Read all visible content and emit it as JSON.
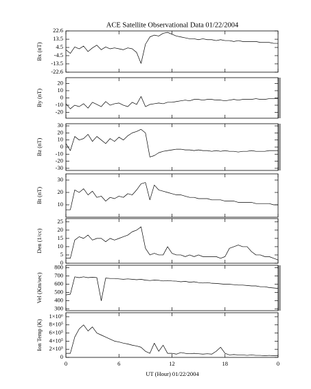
{
  "title": "ACE Satellite Observational Data   01/22/2004",
  "xlabel": "UT (Hour)   01/22/2004",
  "chart_data": [
    {
      "type": "line",
      "ylabel": "Bx (nT)",
      "xlim": [
        0,
        24
      ],
      "xticks": [
        0,
        6,
        12,
        18,
        {
          "value": 24,
          "label": "0"
        }
      ],
      "ylim": [
        -22.6,
        22.6
      ],
      "yticks": [
        22.6,
        13.5,
        4.5,
        -4.5,
        -13.5,
        -22.6
      ],
      "color": "#000000",
      "x": [
        0,
        0.5,
        1,
        1.5,
        2,
        2.5,
        3,
        3.5,
        4,
        4.5,
        5,
        5.5,
        6,
        6.5,
        7,
        7.5,
        8,
        8.5,
        9,
        9.5,
        10,
        10.5,
        11,
        11.5,
        12,
        12.5,
        13,
        13.5,
        14,
        14.5,
        15,
        15.5,
        16,
        16.5,
        17,
        17.5,
        18,
        18.5,
        19,
        19.5,
        20,
        20.5,
        21,
        21.5,
        22,
        22.5,
        23,
        23.5,
        24
      ],
      "values": [
        2,
        -2,
        5,
        3,
        6,
        0,
        4,
        7,
        2,
        5,
        3,
        4,
        3,
        2,
        4,
        3,
        -1,
        -13,
        8,
        16,
        18,
        17,
        20,
        21,
        19,
        17,
        16,
        15,
        14,
        14,
        13,
        14,
        13,
        13,
        12,
        13,
        12,
        12,
        11,
        12,
        11,
        11,
        11,
        11,
        10,
        10,
        10,
        9,
        9
      ]
    },
    {
      "type": "line",
      "ylabel": "By (nT)",
      "xlim": [
        0,
        24
      ],
      "xticks": [
        0,
        6,
        12,
        18,
        {
          "value": 24,
          "label": "0"
        }
      ],
      "ylim": [
        -28,
        28
      ],
      "yticks": [
        20,
        10,
        0,
        -10,
        -20
      ],
      "color": "#000000",
      "x": [
        0,
        0.5,
        1,
        1.5,
        2,
        2.5,
        3,
        3.5,
        4,
        4.5,
        5,
        5.5,
        6,
        6.5,
        7,
        7.5,
        8,
        8.5,
        9,
        9.5,
        10,
        10.5,
        11,
        11.5,
        12,
        12.5,
        13,
        13.5,
        14,
        14.5,
        15,
        15.5,
        16,
        16.5,
        17,
        17.5,
        18,
        18.5,
        19,
        19.5,
        20,
        20.5,
        21,
        21.5,
        22,
        22.5,
        23,
        23.5,
        24
      ],
      "values": [
        -8,
        -15,
        -10,
        -12,
        -8,
        -14,
        -6,
        -9,
        -12,
        -5,
        -10,
        -8,
        -7,
        -10,
        -12,
        -6,
        -9,
        2,
        -12,
        -9,
        -8,
        -7,
        -8,
        -6,
        -6,
        -5,
        -4,
        -3,
        -4,
        -2,
        -2,
        -3,
        -2,
        -2,
        -3,
        -3,
        -4,
        -3,
        -2,
        -3,
        -2,
        -2,
        -2,
        -1,
        -2,
        -2,
        -1,
        -1,
        -1
      ]
    },
    {
      "type": "line",
      "ylabel": "Bz (nT)",
      "xlim": [
        0,
        24
      ],
      "xticks": [
        0,
        6,
        12,
        18,
        {
          "value": 24,
          "label": "0"
        }
      ],
      "ylim": [
        -33,
        33
      ],
      "yticks": [
        30,
        20,
        10,
        0,
        -10,
        -20,
        -30
      ],
      "color": "#000000",
      "x": [
        0,
        0.5,
        1,
        1.5,
        2,
        2.5,
        3,
        3.5,
        4,
        4.5,
        5,
        5.5,
        6,
        6.5,
        7,
        7.5,
        8,
        8.5,
        9,
        9.5,
        10,
        10.5,
        11,
        11.5,
        12,
        12.5,
        13,
        13.5,
        14,
        14.5,
        15,
        15.5,
        16,
        16.5,
        17,
        17.5,
        18,
        18.5,
        19,
        19.5,
        20,
        20.5,
        21,
        21.5,
        22,
        22.5,
        23,
        23.5,
        24
      ],
      "values": [
        5,
        -5,
        15,
        10,
        12,
        18,
        8,
        15,
        10,
        5,
        12,
        8,
        14,
        10,
        16,
        20,
        22,
        25,
        20,
        -14,
        -12,
        -8,
        -6,
        -5,
        -4,
        -3,
        -3,
        -4,
        -4,
        -5,
        -4,
        -5,
        -5,
        -6,
        -5,
        -6,
        -5,
        -6,
        -6,
        -7,
        -6,
        -6,
        -5,
        -6,
        -6,
        -6,
        -5,
        -5,
        -5
      ]
    },
    {
      "type": "line",
      "ylabel": "Bt (nT)",
      "xlim": [
        0,
        24
      ],
      "xticks": [
        0,
        6,
        12,
        18,
        {
          "value": 24,
          "label": "0"
        }
      ],
      "ylim": [
        0,
        35
      ],
      "yticks": [
        30,
        20,
        10
      ],
      "color": "#000000",
      "x": [
        0,
        0.5,
        1,
        1.5,
        2,
        2.5,
        3,
        3.5,
        4,
        4.5,
        5,
        5.5,
        6,
        6.5,
        7,
        7.5,
        8,
        8.5,
        9,
        9.5,
        10,
        10.5,
        11,
        11.5,
        12,
        12.5,
        13,
        13.5,
        14,
        14.5,
        15,
        15.5,
        16,
        16.5,
        17,
        17.5,
        18,
        18.5,
        19,
        19.5,
        20,
        20.5,
        21,
        21.5,
        22,
        22.5,
        23,
        23.5,
        24
      ],
      "values": [
        6,
        6,
        22,
        20,
        23,
        18,
        21,
        16,
        17,
        13,
        16,
        15,
        17,
        16,
        19,
        18,
        22,
        27,
        28,
        14,
        26,
        22,
        21,
        20,
        19,
        18,
        18,
        17,
        16,
        16,
        15,
        15,
        15,
        14,
        14,
        14,
        13,
        13,
        13,
        12,
        12,
        12,
        12,
        11,
        11,
        11,
        11,
        10,
        10
      ]
    },
    {
      "type": "line",
      "ylabel": "Den (1/cc)",
      "xlim": [
        0,
        24
      ],
      "xticks": [
        0,
        6,
        12,
        18,
        {
          "value": 24,
          "label": "0"
        }
      ],
      "ylim": [
        0,
        27
      ],
      "yticks": [
        25,
        20,
        15,
        10,
        5,
        0
      ],
      "color": "#000000",
      "x": [
        0,
        0.5,
        1,
        1.5,
        2,
        2.5,
        3,
        3.5,
        4,
        4.5,
        5,
        5.5,
        6,
        6.5,
        7,
        7.5,
        8,
        8.5,
        9,
        9.5,
        10,
        10.5,
        11,
        11.5,
        12,
        12.5,
        13,
        13.5,
        14,
        14.5,
        15,
        15.5,
        16,
        16.5,
        17,
        17.5,
        18,
        18.5,
        19,
        19.5,
        20,
        20.5,
        21,
        21.5,
        22,
        22.5,
        23,
        23.5,
        24
      ],
      "values": [
        3,
        3,
        14,
        16,
        15,
        17,
        14,
        15,
        15,
        13,
        15,
        14,
        15,
        16,
        17,
        19,
        20,
        22,
        9,
        5,
        6,
        5,
        5,
        10,
        6,
        5,
        5,
        4,
        5,
        4,
        5,
        4,
        4,
        4,
        4,
        3,
        4,
        9,
        10,
        11,
        10,
        10,
        7,
        5,
        5,
        4,
        4,
        3,
        2
      ]
    },
    {
      "type": "line",
      "ylabel": "Vel (Km/sec)",
      "xlim": [
        0,
        24
      ],
      "xticks": [
        0,
        6,
        12,
        18,
        {
          "value": 24,
          "label": "0"
        }
      ],
      "ylim": [
        280,
        830
      ],
      "yticks": [
        800,
        700,
        600,
        500,
        400,
        300
      ],
      "color": "#000000",
      "x": [
        0,
        0.5,
        1,
        1.5,
        2,
        2.5,
        3,
        3.5,
        4,
        4.5,
        5,
        5.5,
        6,
        6.5,
        7,
        7.5,
        8,
        8.5,
        9,
        9.5,
        10,
        10.5,
        11,
        11.5,
        12,
        12.5,
        13,
        13.5,
        14,
        14.5,
        15,
        15.5,
        16,
        16.5,
        17,
        17.5,
        18,
        18.5,
        19,
        19.5,
        20,
        20.5,
        21,
        21.5,
        22,
        22.5,
        23,
        23.5,
        24
      ],
      "values": [
        470,
        480,
        690,
        680,
        690,
        680,
        685,
        680,
        400,
        675,
        670,
        670,
        665,
        660,
        665,
        660,
        655,
        660,
        650,
        645,
        650,
        648,
        640,
        645,
        640,
        638,
        630,
        635,
        625,
        630,
        620,
        615,
        620,
        612,
        610,
        605,
        600,
        600,
        595,
        590,
        590,
        585,
        580,
        580,
        570,
        570,
        560,
        555,
        550
      ]
    },
    {
      "type": "line",
      "ylabel": "Ion Temp (K)",
      "xlim": [
        0,
        24
      ],
      "xticks": [
        0,
        6,
        12,
        18,
        {
          "value": 24,
          "label": "0"
        }
      ],
      "ylim": [
        0,
        1100000
      ],
      "yticks": [
        {
          "value": 1000000,
          "label": "1×10⁶"
        },
        {
          "value": 800000,
          "label": "8×10⁵"
        },
        {
          "value": 600000,
          "label": "6×10⁵"
        },
        {
          "value": 400000,
          "label": "4×10⁵"
        },
        {
          "value": 200000,
          "label": "2×10⁵"
        },
        0
      ],
      "color": "#000000",
      "x": [
        0,
        0.5,
        1,
        1.5,
        2,
        2.5,
        3,
        3.5,
        4,
        4.5,
        5,
        5.5,
        6,
        6.5,
        7,
        7.5,
        8,
        8.5,
        9,
        9.5,
        10,
        10.5,
        11,
        11.5,
        12,
        12.5,
        13,
        13.5,
        14,
        14.5,
        15,
        15.5,
        16,
        16.5,
        17,
        17.5,
        18,
        18.5,
        19,
        19.5,
        20,
        20.5,
        21,
        21.5,
        22,
        22.5,
        23,
        23.5,
        24
      ],
      "values": [
        100000,
        100000,
        500000,
        700000,
        800000,
        650000,
        750000,
        600000,
        550000,
        500000,
        450000,
        400000,
        380000,
        350000,
        330000,
        300000,
        280000,
        250000,
        150000,
        100000,
        350000,
        150000,
        300000,
        100000,
        100000,
        80000,
        120000,
        100000,
        90000,
        100000,
        90000,
        80000,
        90000,
        80000,
        150000,
        250000,
        100000,
        60000,
        70000,
        60000,
        60000,
        50000,
        60000,
        50000,
        50000,
        40000,
        50000,
        40000,
        40000
      ]
    }
  ]
}
